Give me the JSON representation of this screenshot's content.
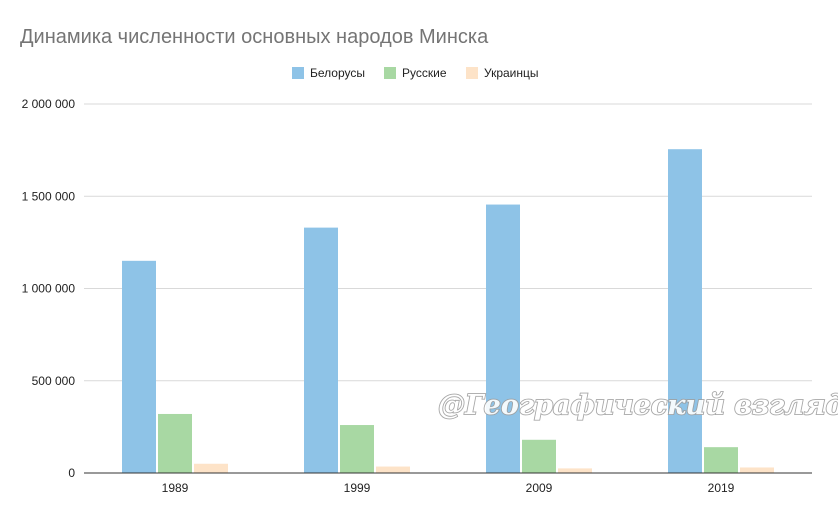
{
  "chart_data": {
    "type": "bar",
    "title": "Динамика численности основных народов Минска",
    "categories": [
      "1989",
      "1999",
      "2009",
      "2019"
    ],
    "series": [
      {
        "name": "Белорусы",
        "color": "#8ec3e7",
        "values": [
          1150000,
          1330000,
          1455000,
          1755000
        ]
      },
      {
        "name": "Русские",
        "color": "#a8d8a3",
        "values": [
          320000,
          260000,
          180000,
          140000
        ]
      },
      {
        "name": "Украинцы",
        "color": "#fde3c8",
        "values": [
          50000,
          35000,
          25000,
          30000
        ]
      }
    ],
    "ylim": [
      0,
      2000000
    ],
    "yticks": [
      0,
      500000,
      1000000,
      1500000,
      2000000
    ],
    "ytick_labels": [
      "0",
      "500 000",
      "1 000 000",
      "1 500 000",
      "2 000 000"
    ],
    "grid": true,
    "legend_position": "top-center",
    "xlabel": "",
    "ylabel": ""
  },
  "watermark": "@Географический взгляд",
  "colors": {
    "grid": "#d9d9d9",
    "axis": "#333333",
    "title": "#757575"
  }
}
